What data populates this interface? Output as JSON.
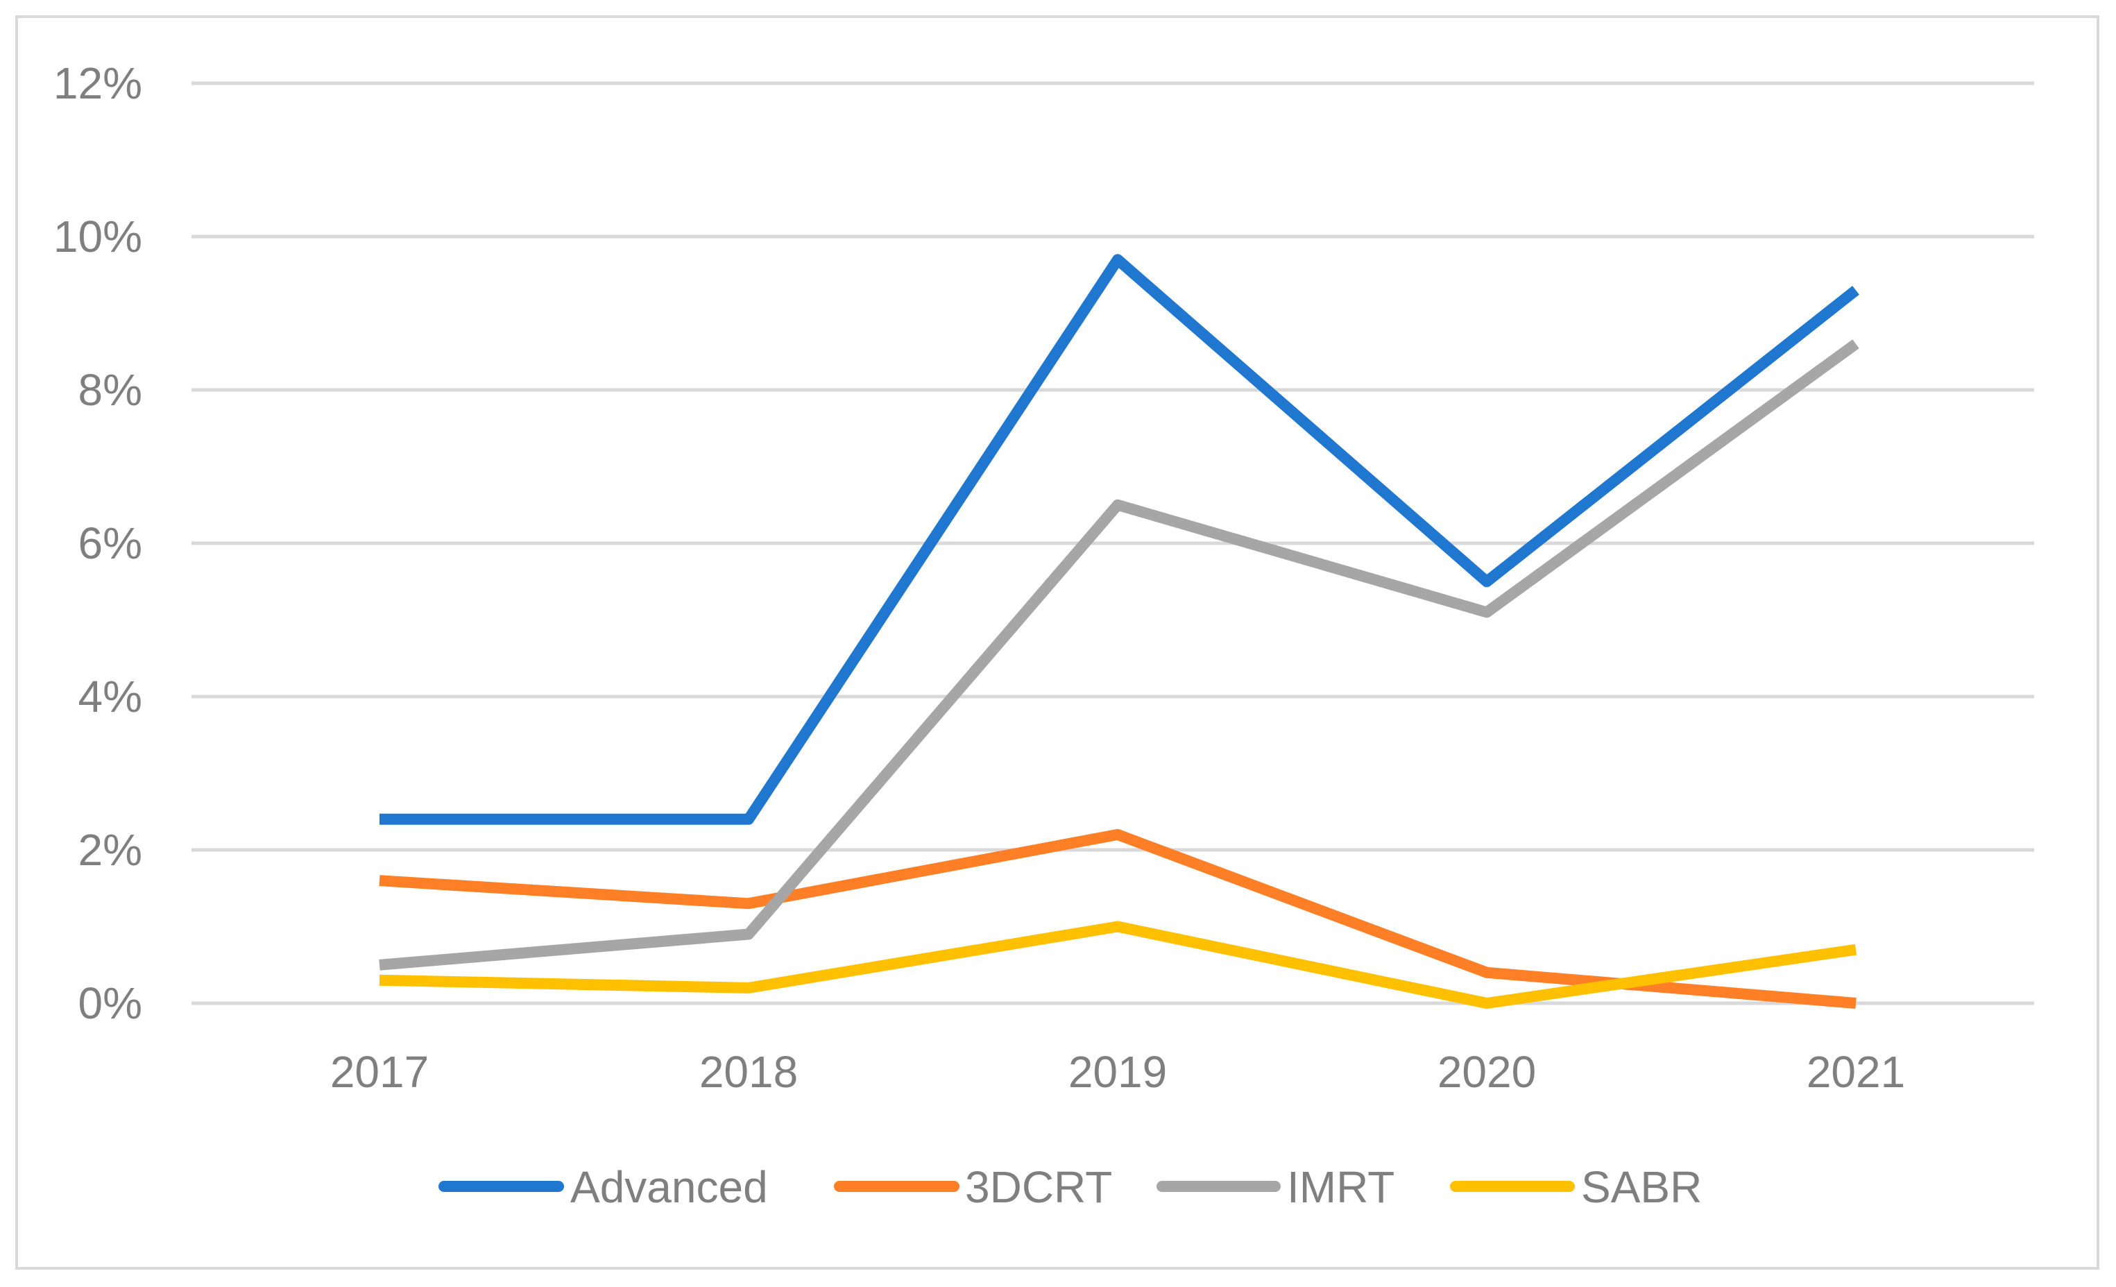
{
  "chart_data": {
    "type": "line",
    "title": "",
    "xlabel": "",
    "ylabel": "",
    "categories": [
      "2017",
      "2018",
      "2019",
      "2020",
      "2021"
    ],
    "ylim": [
      0,
      12
    ],
    "yticks": [
      0,
      2,
      4,
      6,
      8,
      10,
      12
    ],
    "ytick_labels": [
      "0%",
      "2%",
      "4%",
      "6%",
      "8%",
      "10%",
      "12%"
    ],
    "grid": true,
    "legend_position": "bottom",
    "series": [
      {
        "name": "Advanced",
        "color": "#1f77d0",
        "values": [
          2.4,
          2.4,
          9.7,
          5.5,
          9.3
        ]
      },
      {
        "name": "3DCRT",
        "color": "#ff7f27",
        "values": [
          1.6,
          1.3,
          2.2,
          0.4,
          0.0
        ]
      },
      {
        "name": "IMRT",
        "color": "#a6a6a6",
        "values": [
          0.5,
          0.9,
          6.5,
          5.1,
          8.6
        ]
      },
      {
        "name": "SABR",
        "color": "#ffc000",
        "values": [
          0.3,
          0.2,
          1.0,
          0.0,
          0.7
        ]
      }
    ]
  }
}
